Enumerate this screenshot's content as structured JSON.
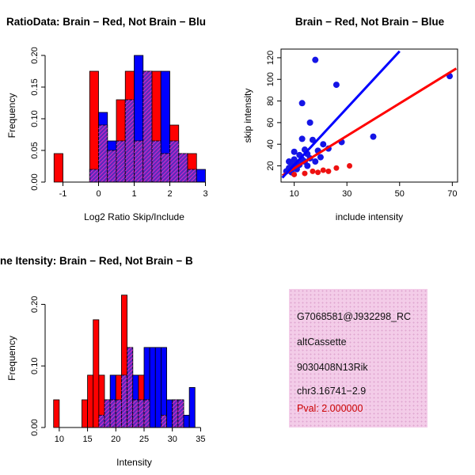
{
  "info_panel": {
    "lines": [
      "G7068581@J932298_RC",
      "altCassette",
      "9030408N13Rik",
      "chr3.16741−2.9"
    ],
    "pval": "Pval: 2.000000",
    "bg": "#f3cce8",
    "pval_color": "#cc0000"
  },
  "chart_data": [
    {
      "type": "bar",
      "variant": "overlaid-histogram",
      "title": "RatioData: Brain − Red, Not Brain − Blu",
      "xlabel": "Log2 Ratio Skip/Include",
      "ylabel": "Frequency",
      "xlim": [
        -1.5,
        3.5
      ],
      "ylim": [
        0,
        0.21
      ],
      "xticks": [
        -1,
        0,
        1,
        2,
        3
      ],
      "xtick_labels": [
        "-1",
        "0",
        "1",
        "2",
        "3"
      ],
      "yticks": [
        0,
        0.05,
        0.1,
        0.15,
        0.2
      ],
      "ytick_labels": [
        "0.00",
        "0.05",
        "0.10",
        "0.15",
        "0.20"
      ],
      "bin_width": 0.25,
      "bins": [
        -1.25,
        -1.0,
        -0.75,
        -0.5,
        -0.25,
        0.0,
        0.25,
        0.5,
        0.75,
        1.0,
        1.25,
        1.5,
        1.75,
        2.0,
        2.25,
        2.5,
        2.75
      ],
      "series": [
        {
          "name": "Brain",
          "color": "#ff0000",
          "values": [
            0.045,
            0,
            0,
            0,
            0.175,
            0.09,
            0.05,
            0.13,
            0.175,
            0.065,
            0.175,
            0.175,
            0.045,
            0.09,
            0.045,
            0.045,
            0
          ]
        },
        {
          "name": "Not Brain",
          "color": "#0000ff",
          "values": [
            0,
            0,
            0,
            0,
            0.02,
            0.11,
            0.065,
            0.065,
            0.13,
            0.2,
            0.175,
            0.065,
            0.175,
            0.065,
            0.045,
            0.02,
            0.02
          ]
        }
      ],
      "overlap_color": "#5b2bbb",
      "hatch_color": "#d928c8",
      "grid": false,
      "legend": "none"
    },
    {
      "type": "scatter",
      "title": "Brain − Red, Not Brain − Blue",
      "xlabel": "include intensity",
      "ylabel": "skip intensity",
      "xlim": [
        5,
        72
      ],
      "ylim": [
        5,
        128
      ],
      "xticks": [
        10,
        30,
        50,
        70
      ],
      "xtick_labels": [
        "10",
        "30",
        "50",
        "70"
      ],
      "yticks": [
        20,
        40,
        60,
        80,
        100,
        120
      ],
      "ytick_labels": [
        "20",
        "40",
        "60",
        "80",
        "100",
        "120"
      ],
      "series": [
        {
          "name": "Not Brain",
          "color": "#1515e6",
          "r": 4,
          "points": [
            [
              7,
              15
            ],
            [
              8,
              18
            ],
            [
              8,
              24
            ],
            [
              9,
              14
            ],
            [
              9,
              21
            ],
            [
              10,
              19
            ],
            [
              10,
              26
            ],
            [
              10,
              33
            ],
            [
              11,
              17
            ],
            [
              11,
              23
            ],
            [
              12,
              21
            ],
            [
              12,
              30
            ],
            [
              13,
              26
            ],
            [
              13,
              45
            ],
            [
              13,
              78
            ],
            [
              14,
              24
            ],
            [
              14,
              35
            ],
            [
              15,
              20
            ],
            [
              15,
              31
            ],
            [
              16,
              27
            ],
            [
              16,
              60
            ],
            [
              17,
              44
            ],
            [
              18,
              24
            ],
            [
              18,
              118
            ],
            [
              19,
              34
            ],
            [
              20,
              28
            ],
            [
              21,
              40
            ],
            [
              23,
              36
            ],
            [
              26,
              95
            ],
            [
              28,
              42
            ],
            [
              40,
              47
            ],
            [
              69,
              103
            ]
          ]
        },
        {
          "name": "Brain",
          "color": "#ee1111",
          "r": 3.5,
          "points": [
            [
              10,
              12
            ],
            [
              14,
              13
            ],
            [
              17,
              15
            ],
            [
              19,
              14
            ],
            [
              21,
              16
            ],
            [
              23,
              15
            ],
            [
              26,
              18
            ],
            [
              31,
              20
            ]
          ]
        }
      ],
      "lines": [
        {
          "name": "brain-fit-line",
          "color": "#ff0000",
          "width": 3,
          "x": [
            5.5,
            71.5
          ],
          "y": [
            11,
            110
          ]
        },
        {
          "name": "notbrain-fit-line",
          "color": "#0000ff",
          "width": 3,
          "x": [
            5.5,
            50
          ],
          "y": [
            9,
            126
          ]
        }
      ],
      "grid": false,
      "legend": "none"
    },
    {
      "type": "bar",
      "variant": "overlaid-histogram",
      "title": "ne Itensity: Brain − Red, Not Brain − B",
      "xlabel": "Intensity",
      "ylabel": "Frequency",
      "xlim": [
        7.5,
        39
      ],
      "ylim": [
        0,
        0.225
      ],
      "xticks": [
        10,
        15,
        20,
        25,
        30,
        35
      ],
      "xtick_labels": [
        "10",
        "15",
        "20",
        "25",
        "30",
        "35"
      ],
      "yticks": [
        0,
        0.1,
        0.2
      ],
      "ytick_labels": [
        "0.00",
        "0.10",
        "0.20"
      ],
      "bin_width": 1,
      "bins": [
        9,
        10,
        11,
        12,
        13,
        14,
        15,
        16,
        17,
        18,
        19,
        20,
        21,
        22,
        23,
        24,
        25,
        26,
        27,
        28,
        29,
        30,
        31,
        32,
        33
      ],
      "series": [
        {
          "name": "Brain",
          "color": "#ff0000",
          "values": [
            0.045,
            0,
            0,
            0,
            0,
            0.045,
            0.085,
            0.175,
            0.085,
            0.045,
            0.045,
            0.085,
            0.215,
            0.13,
            0.045,
            0.085,
            0.045,
            0,
            0,
            0.02,
            0,
            0.045,
            0.045,
            0,
            0
          ]
        },
        {
          "name": "Not Brain",
          "color": "#0000ff",
          "values": [
            0,
            0,
            0,
            0,
            0,
            0,
            0,
            0,
            0.02,
            0.045,
            0.085,
            0.045,
            0.085,
            0.13,
            0.085,
            0.045,
            0.13,
            0.13,
            0.13,
            0.13,
            0.045,
            0.045,
            0.045,
            0.02,
            0.065
          ]
        }
      ],
      "overlap_color": "#5b2bbb",
      "hatch_color": "#d928c8",
      "grid": false,
      "legend": "none"
    }
  ]
}
